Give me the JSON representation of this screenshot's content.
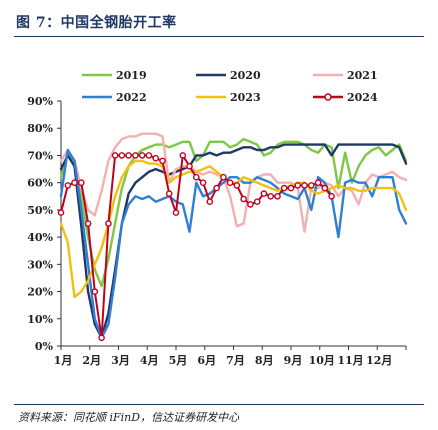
{
  "header": {
    "title": "图 7：中国全钢胎开工率"
  },
  "footer": {
    "source": "资料来源：同花顺 iFinD，信达证券研发中心"
  },
  "chart_data": {
    "type": "line",
    "title": "图 7：中国全钢胎开工率",
    "xlabel": "",
    "ylabel": "",
    "ylim": [
      0,
      90
    ],
    "y_unit": "%",
    "yticks": [
      "0%",
      "10%",
      "20%",
      "30%",
      "40%",
      "50%",
      "60%",
      "70%",
      "80%",
      "90%"
    ],
    "x_ticks": [
      "1月",
      "2月",
      "3月",
      "4月",
      "5月",
      "6月",
      "7月",
      "8月",
      "9月",
      "10月",
      "11月",
      "12月"
    ],
    "weeks_per_year": 52,
    "legend_position": "top",
    "grid": false,
    "series": [
      {
        "name": "2019",
        "color": "#7ec845",
        "marker": false,
        "values": [
          62,
          71,
          68,
          55,
          40,
          28,
          22,
          32,
          45,
          58,
          66,
          70,
          72,
          73,
          74,
          74,
          73,
          74,
          75,
          75,
          68,
          70,
          75,
          75,
          75,
          73,
          74,
          76,
          75,
          74,
          70,
          71,
          74,
          75,
          75,
          75,
          74,
          72,
          71,
          74,
          73,
          58,
          71,
          60,
          66,
          70,
          72,
          73,
          70,
          72,
          74,
          68
        ]
      },
      {
        "name": "2020",
        "color": "#1f3864",
        "marker": false,
        "values": [
          65,
          70,
          66,
          44,
          20,
          8,
          3,
          12,
          28,
          45,
          56,
          60,
          62,
          64,
          65,
          64,
          63,
          64,
          65,
          66,
          70,
          70,
          71,
          70,
          71,
          71,
          72,
          73,
          73,
          72,
          72,
          73,
          73,
          74,
          74,
          74,
          74,
          74,
          74,
          74,
          70,
          74,
          74,
          74,
          74,
          74,
          74,
          74,
          74,
          74,
          73,
          67
        ]
      },
      {
        "name": "2021",
        "color": "#f4b0b0",
        "marker": false,
        "values": [
          68,
          72,
          68,
          58,
          50,
          48,
          57,
          68,
          73,
          76,
          77,
          77,
          78,
          78,
          78,
          77,
          60,
          65,
          66,
          66,
          64,
          63,
          64,
          63,
          62,
          55,
          44,
          45,
          60,
          62,
          63,
          63,
          60,
          60,
          60,
          58,
          42,
          58,
          58,
          60,
          59,
          55,
          58,
          57,
          52,
          60,
          63,
          62,
          63,
          64,
          62,
          61
        ]
      },
      {
        "name": "2022",
        "color": "#2f7fd6",
        "marker": false,
        "values": [
          55,
          72,
          68,
          50,
          30,
          10,
          3,
          8,
          25,
          45,
          52,
          55,
          54,
          55,
          53,
          54,
          55,
          53,
          52,
          42,
          60,
          55,
          56,
          58,
          60,
          62,
          62,
          60,
          60,
          62,
          61,
          60,
          58,
          56,
          55,
          54,
          58,
          50,
          62,
          60,
          55,
          40,
          60,
          61,
          60,
          60,
          55,
          62,
          62,
          62,
          50,
          45
        ]
      },
      {
        "name": "2023",
        "color": "#f2c10f",
        "marker": false,
        "values": [
          45,
          38,
          18,
          20,
          24,
          30,
          36,
          45,
          55,
          62,
          66,
          68,
          68,
          67,
          67,
          66,
          60,
          62,
          63,
          64,
          64,
          65,
          66,
          64,
          62,
          60,
          60,
          62,
          61,
          60,
          59,
          58,
          57,
          58,
          59,
          60,
          60,
          57,
          56,
          57,
          58,
          59,
          58,
          58,
          57,
          57,
          58,
          58,
          58,
          58,
          56,
          50
        ]
      },
      {
        "name": "2024",
        "color": "#c0001e",
        "marker": true,
        "values": [
          49,
          59,
          60,
          60,
          45,
          20,
          3,
          45,
          70,
          70,
          70,
          70,
          70,
          70,
          69,
          68,
          56,
          49,
          70,
          66,
          62,
          60,
          53,
          58,
          62,
          60,
          59,
          54,
          52,
          53,
          56,
          55,
          55,
          58,
          58,
          59,
          59,
          59,
          60,
          58,
          55
        ]
      }
    ]
  }
}
